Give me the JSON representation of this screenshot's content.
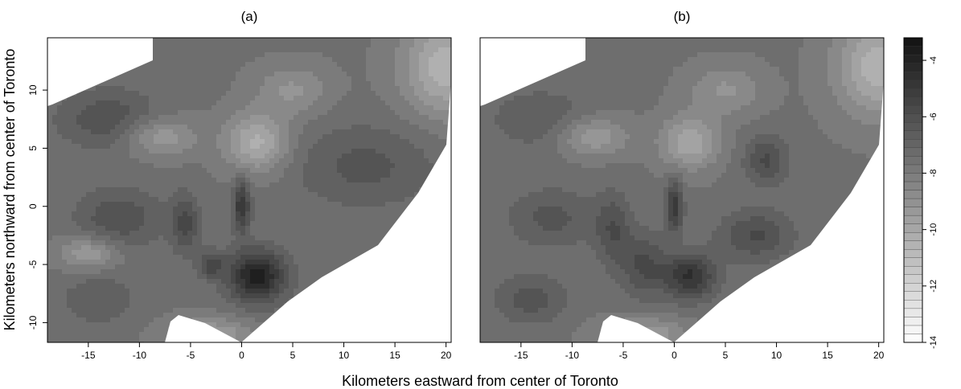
{
  "chart_data": [
    {
      "type": "heatmap",
      "title": "(a)",
      "xlabel": "Kilometers eastward from center of Toronto",
      "ylabel": "Kilometers northward from center of Toronto",
      "xlim": [
        -19,
        20.5
      ],
      "ylim": [
        -11.7,
        14.5
      ],
      "x_ticks": [
        -15,
        -10,
        -5,
        0,
        5,
        10,
        15,
        20
      ],
      "y_ticks": [
        -10,
        -5,
        0,
        5,
        10
      ],
      "grid": false,
      "blobs": [
        {
          "x": 1.5,
          "y": -6.0,
          "sx": 2.0,
          "sy": 1.6,
          "v": -3.8
        },
        {
          "x": 0.0,
          "y": 0.0,
          "sx": 0.6,
          "sy": 1.6,
          "v": -4.8
        },
        {
          "x": -3.0,
          "y": -5.0,
          "sx": 0.9,
          "sy": 0.8,
          "v": -5.6
        },
        {
          "x": -5.5,
          "y": -1.5,
          "sx": 1.0,
          "sy": 1.8,
          "v": -5.8
        },
        {
          "x": -12.0,
          "y": -1.0,
          "sx": 3.0,
          "sy": 1.8,
          "v": -6.0
        },
        {
          "x": -13.0,
          "y": 7.5,
          "sx": 3.5,
          "sy": 1.8,
          "v": -6.0
        },
        {
          "x": 12.0,
          "y": 3.5,
          "sx": 5.0,
          "sy": 2.5,
          "v": -6.3
        },
        {
          "x": -14.0,
          "y": -8.0,
          "sx": 2.5,
          "sy": 1.5,
          "v": -6.5
        },
        {
          "x": 1.5,
          "y": 5.5,
          "sx": 2.2,
          "sy": 1.8,
          "v": -10.3
        },
        {
          "x": -8.0,
          "y": 6.0,
          "sx": 2.5,
          "sy": 1.2,
          "v": -9.5
        },
        {
          "x": 5.0,
          "y": 10.0,
          "sx": 2.5,
          "sy": 1.5,
          "v": -9.0
        },
        {
          "x": -15.0,
          "y": -4.0,
          "sx": 2.0,
          "sy": 1.0,
          "v": -9.5
        },
        {
          "x": -3.0,
          "y": -11.0,
          "sx": 3.0,
          "sy": 1.0,
          "v": -9.5
        },
        {
          "x": 20.0,
          "y": 12.0,
          "sx": 3.0,
          "sy": 3.0,
          "v": -10.5
        }
      ]
    },
    {
      "type": "heatmap",
      "title": "(b)",
      "xlim": [
        -19,
        20.5
      ],
      "ylim": [
        -11.7,
        14.5
      ],
      "x_ticks": [
        -15,
        -10,
        -5,
        0,
        5,
        10,
        15,
        20
      ],
      "grid": false,
      "blobs": [
        {
          "x": 1.5,
          "y": -6.0,
          "sx": 1.8,
          "sy": 1.4,
          "v": -4.6
        },
        {
          "x": 0.0,
          "y": 0.0,
          "sx": 0.6,
          "sy": 1.6,
          "v": -5.0
        },
        {
          "x": -3.0,
          "y": -5.0,
          "sx": 1.5,
          "sy": 2.0,
          "v": -5.8
        },
        {
          "x": -6.0,
          "y": -2.0,
          "sx": 1.2,
          "sy": 2.2,
          "v": -6.0
        },
        {
          "x": 8.0,
          "y": -2.5,
          "sx": 2.5,
          "sy": 1.5,
          "v": -5.8
        },
        {
          "x": 9.0,
          "y": 4.0,
          "sx": 1.5,
          "sy": 1.5,
          "v": -5.8
        },
        {
          "x": -12.0,
          "y": -1.0,
          "sx": 3.0,
          "sy": 1.8,
          "v": -6.3
        },
        {
          "x": -13.0,
          "y": 7.5,
          "sx": 3.5,
          "sy": 1.8,
          "v": -6.5
        },
        {
          "x": -14.0,
          "y": -8.0,
          "sx": 2.5,
          "sy": 1.5,
          "v": -6.2
        },
        {
          "x": 1.5,
          "y": 5.5,
          "sx": 2.0,
          "sy": 1.6,
          "v": -10.0
        },
        {
          "x": -8.0,
          "y": 6.0,
          "sx": 2.5,
          "sy": 1.2,
          "v": -9.5
        },
        {
          "x": 5.0,
          "y": 10.0,
          "sx": 2.5,
          "sy": 1.5,
          "v": -9.0
        },
        {
          "x": -3.0,
          "y": -11.0,
          "sx": 3.0,
          "sy": 1.0,
          "v": -9.5
        },
        {
          "x": 20.0,
          "y": 12.0,
          "sx": 3.0,
          "sy": 3.0,
          "v": -10.5
        }
      ]
    }
  ],
  "colorbar": {
    "range": [
      -14,
      -3.2
    ],
    "ticks": [
      -4,
      -6,
      -8,
      -10,
      -12,
      -14
    ]
  }
}
